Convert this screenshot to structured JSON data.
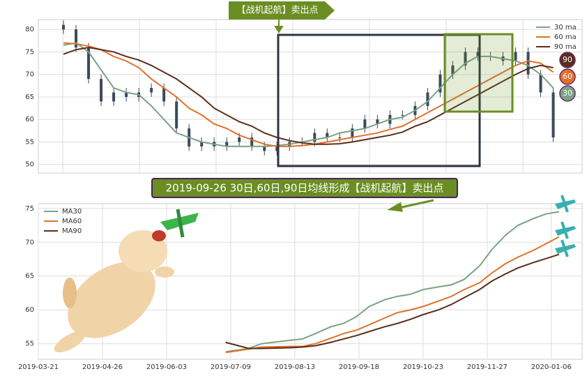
{
  "chart_data": [
    {
      "type": "candlestick",
      "x": [
        0,
        1,
        2,
        3,
        4,
        5,
        6,
        7,
        8,
        9,
        10,
        11,
        12,
        13,
        14,
        15,
        16,
        17,
        18,
        19,
        20,
        21,
        22,
        23,
        24,
        25,
        26,
        27,
        28,
        29,
        30,
        31,
        32,
        33,
        34,
        35,
        36,
        37,
        38,
        39
      ],
      "open": [
        81,
        80,
        76,
        69,
        64,
        66,
        65,
        66,
        67,
        64,
        58,
        54,
        55,
        54,
        55,
        56,
        54,
        53,
        54,
        55,
        55,
        57,
        56,
        56,
        58,
        60,
        59,
        61,
        61,
        63,
        66,
        70,
        72,
        75,
        74,
        74,
        73,
        75,
        70,
        66
      ],
      "high": [
        82,
        81,
        77,
        70,
        67,
        67,
        67,
        68,
        68,
        65,
        59,
        56,
        56,
        56,
        57,
        57,
        55,
        55,
        56,
        56,
        58,
        58,
        57,
        59,
        61,
        61,
        62,
        62,
        64,
        67,
        71,
        73,
        76,
        76,
        75,
        75,
        76,
        76,
        71,
        67
      ],
      "low": [
        79,
        75,
        68,
        63,
        63,
        64,
        64,
        65,
        63,
        57,
        53,
        53,
        53,
        53,
        54,
        53,
        52,
        52,
        53,
        54,
        54,
        55,
        55,
        55,
        57,
        58,
        58,
        60,
        60,
        62,
        65,
        69,
        71,
        73,
        73,
        72,
        72,
        69,
        65,
        55
      ],
      "close": [
        80,
        76,
        69,
        64,
        66,
        65,
        66,
        67,
        64,
        58,
        54,
        55,
        54,
        55,
        56,
        54,
        53,
        54,
        55,
        55,
        57,
        56,
        56,
        58,
        60,
        59,
        61,
        61,
        63,
        66,
        70,
        72,
        75,
        74,
        74,
        73,
        75,
        70,
        66,
        56
      ],
      "candle_color": "#3a4a5c",
      "xlim": [
        -2,
        41.3
      ],
      "ylim": [
        48.1,
        82.2
      ],
      "yticks": [
        50,
        55,
        60,
        65,
        70,
        75,
        80
      ],
      "grid": true,
      "legend": "upper right",
      "series": [
        {
          "name": "30 ma",
          "color": "#7aa382",
          "values": [
            76.5,
            77,
            75,
            71,
            67,
            66,
            65.5,
            63,
            60,
            57,
            56,
            55,
            54.5,
            54,
            54,
            54,
            54,
            54.2,
            54.5,
            55,
            55.5,
            56,
            57,
            57.5,
            58,
            59,
            60,
            60.5,
            62,
            64,
            67,
            70,
            72.5,
            74,
            74,
            73.5,
            73,
            72,
            70,
            67
          ]
        },
        {
          "name": "60 ma",
          "color": "#e0712a",
          "values": [
            77,
            76.8,
            76.3,
            75.5,
            74,
            73,
            71.5,
            69,
            67,
            65,
            62.5,
            61,
            59,
            58,
            56.5,
            55.5,
            54.5,
            54,
            54,
            54.2,
            54.5,
            55,
            55.5,
            56,
            56.5,
            57,
            57.8,
            58.5,
            60,
            61.5,
            63,
            64.5,
            66,
            67.5,
            69,
            70.5,
            72,
            73,
            72.5,
            70.5
          ]
        },
        {
          "name": "90 ma",
          "color": "#5a2e1a",
          "values": [
            74.5,
            75.5,
            76,
            75.5,
            75,
            74,
            73.2,
            72,
            70.5,
            69,
            67,
            65,
            62.5,
            61,
            59.5,
            58.5,
            57,
            56,
            55.3,
            54.8,
            54.5,
            54.5,
            54.6,
            55,
            55.5,
            56,
            56.5,
            57.2,
            58.5,
            59.5,
            61,
            62.5,
            64,
            65.5,
            67,
            68.5,
            70,
            71.3,
            72,
            71.5
          ]
        }
      ],
      "badges": [
        {
          "label": "90",
          "color": "#5a2e1a"
        },
        {
          "label": "60",
          "color": "#e0712a"
        },
        {
          "label": "30",
          "color": "#7aa382"
        }
      ],
      "annotation": "【战机起航】卖出点"
    },
    {
      "type": "line",
      "x": [
        73,
        82,
        87,
        98,
        103,
        108,
        114,
        119,
        124,
        129,
        135,
        140,
        145,
        150,
        156,
        161,
        166,
        172,
        177,
        182,
        187,
        193,
        198,
        203
      ],
      "xlim": [
        0,
        212
      ],
      "xticks": [
        {
          "value": 0,
          "label": "2019-03-21"
        },
        {
          "value": 25,
          "label": "2019-04-26"
        },
        {
          "value": 50,
          "label": "2019-06-03"
        },
        {
          "value": 75,
          "label": "2019-07-09"
        },
        {
          "value": 100,
          "label": "2019-08-13"
        },
        {
          "value": 125,
          "label": "2019-09-18"
        },
        {
          "value": 150,
          "label": "2019-10-23"
        },
        {
          "value": 175,
          "label": "2019-11-27"
        },
        {
          "value": 200,
          "label": "2020-01-06"
        }
      ],
      "ylim": [
        52.7,
        75.7
      ],
      "yticks": [
        55,
        60,
        65,
        70,
        75
      ],
      "grid": true,
      "legend": "upper left",
      "series": [
        {
          "name": "MA30",
          "color": "#7aa382",
          "values": [
            53.8,
            54.3,
            55,
            55.5,
            55.7,
            56.5,
            57.5,
            58,
            59,
            60.5,
            61.5,
            62,
            62.3,
            63,
            63.4,
            63.7,
            64.5,
            66.5,
            69,
            71,
            72.5,
            73.5,
            74.2,
            74.5
          ]
        },
        {
          "name": "MA60",
          "color": "#e0712a",
          "values": [
            53.7,
            54.2,
            54.5,
            54.6,
            54.6,
            55,
            55.8,
            56.5,
            57,
            57.8,
            58.8,
            59.6,
            60,
            60.5,
            61.3,
            62,
            63,
            64,
            65.5,
            66.8,
            67.8,
            68.8,
            69.8,
            70.8
          ]
        },
        {
          "name": "MA90",
          "color": "#5a2e1a",
          "values": [
            55.2,
            54.3,
            54.3,
            54.4,
            54.5,
            54.7,
            55.2,
            55.7,
            56.2,
            56.8,
            57.5,
            58,
            58.6,
            59.3,
            60,
            60.8,
            61.8,
            63,
            64.3,
            65.3,
            66.2,
            67,
            67.6,
            68.2
          ]
        }
      ],
      "annotation": "2019-09-26 30日,60日,90日均线形成【战机起航】卖出点"
    }
  ]
}
